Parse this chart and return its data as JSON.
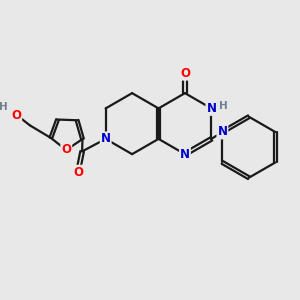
{
  "bg_color": "#e8e8e8",
  "bond_color": "#1a1a1a",
  "N_color": "#0000cd",
  "O_color": "#ff0000",
  "H_color": "#708090",
  "line_width": 1.6,
  "font_size": 8.5,
  "fig_size": [
    3.0,
    3.0
  ],
  "dpi": 100,
  "xlim": [
    0,
    10
  ],
  "ylim": [
    0,
    10
  ]
}
